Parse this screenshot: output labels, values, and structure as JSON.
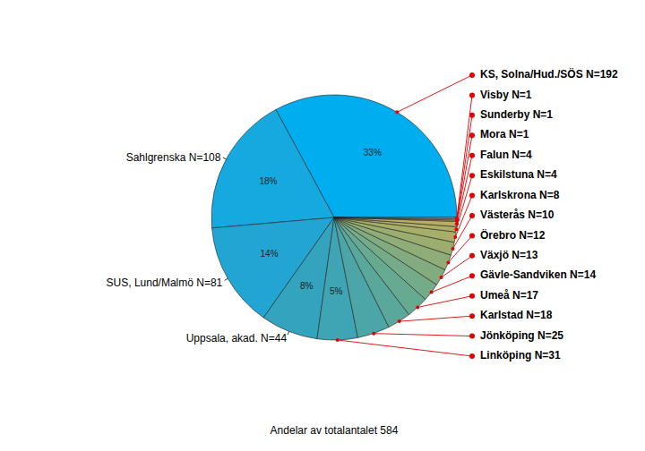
{
  "chart_data": {
    "type": "pie",
    "categories": [
      "KS, Solna/Hud./SÖS N=192",
      "Sahlgrenska N=108",
      "SUS, Lund/Malmö N=81",
      "Uppsala, akad. N=44",
      "Linköping N=31",
      "Jönköping N=25",
      "Karlstad N=18",
      "Umeå N=17",
      "Gävle-Sandviken N=14",
      "Växjö N=13",
      "Örebro N=12",
      "Västerås N=10",
      "Karlskrona N=8",
      "Eskilstuna N=4",
      "Falun N=4",
      "Mora N=1",
      "Sunderby N=1",
      "Visby N=1"
    ],
    "values": [
      192,
      108,
      81,
      44,
      31,
      25,
      18,
      17,
      14,
      13,
      12,
      10,
      8,
      4,
      4,
      1,
      1,
      1
    ],
    "value_labels": [
      "33%",
      "18%",
      "14%",
      "8%",
      "5%",
      null,
      null,
      null,
      null,
      null,
      null,
      null,
      null,
      null,
      null,
      null,
      null,
      null
    ],
    "colors": [
      "#00aeef",
      "#16a9e0",
      "#22a5d2",
      "#33a3be",
      "#3fa4b3",
      "#4ca6a7",
      "#5aa89c",
      "#67aa92",
      "#74ab88",
      "#82ac7f",
      "#8fad77",
      "#9bae70",
      "#a6ae6a",
      "#b0af66",
      "#b8ae64",
      "#bfae64",
      "#c5ae66",
      "#caae6a"
    ],
    "annotations": [
      "Andelar av totalantalet 584"
    ]
  }
}
